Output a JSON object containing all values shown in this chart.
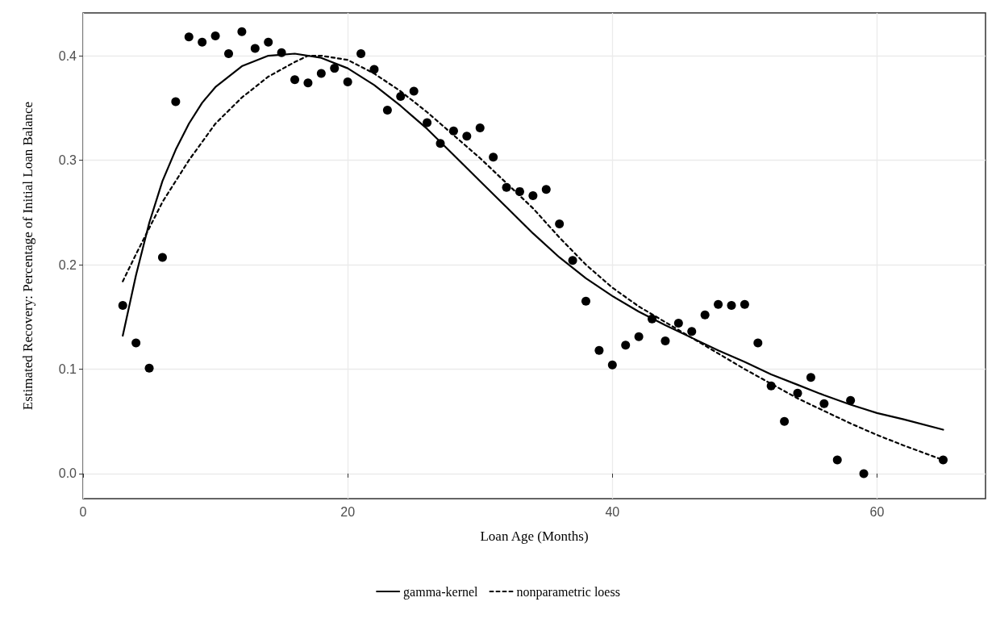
{
  "chart_data": {
    "type": "scatter",
    "xlabel": "Loan Age (Months)",
    "ylabel": "Estimated Recovery: Percentage of Initial Loan Balance",
    "xlim": [
      0,
      68.2
    ],
    "xticks": [
      0,
      20,
      40,
      60
    ],
    "ylim": [
      -0.024,
      0.441
    ],
    "yticks": [
      {
        "value": 0,
        "label": "0.0"
      },
      0.1,
      0.2,
      0.3,
      0.4
    ],
    "grid": true,
    "legend": "bottom",
    "series": [
      {
        "color": "#000000",
        "marker": "circle",
        "x": [
          3,
          4,
          5,
          6,
          7,
          8,
          9,
          10,
          11,
          12,
          13,
          14,
          15,
          16,
          17,
          18,
          19,
          20,
          21,
          22,
          23,
          24,
          25,
          26,
          27,
          28,
          29,
          30,
          31,
          32,
          33,
          34,
          35,
          36,
          37,
          38,
          39,
          40,
          41,
          42,
          43,
          44,
          45,
          46,
          47,
          48,
          49,
          50,
          51,
          52,
          53,
          54,
          55,
          56,
          57,
          58,
          59,
          65
        ],
        "values": [
          0.161,
          0.125,
          0.101,
          0.207,
          0.356,
          0.418,
          0.413,
          0.419,
          0.402,
          0.423,
          0.407,
          0.413,
          0.403,
          0.377,
          0.374,
          0.383,
          0.388,
          0.375,
          0.402,
          0.387,
          0.348,
          0.361,
          0.366,
          0.336,
          0.316,
          0.328,
          0.323,
          0.331,
          0.303,
          0.274,
          0.27,
          0.266,
          0.272,
          0.239,
          0.204,
          0.165,
          0.118,
          0.104,
          0.123,
          0.131,
          0.148,
          0.127,
          0.144,
          0.136,
          0.152,
          0.162,
          0.161,
          0.162,
          0.125,
          0.084,
          0.05,
          0.077,
          0.092,
          0.067,
          0.013,
          0.07,
          0.0,
          0.013
        ]
      },
      {
        "type": "line",
        "name": "gamma-kernel",
        "color": "#000000",
        "line_style": "solid",
        "marker": "none",
        "x": [
          3,
          4,
          5,
          6,
          7,
          8,
          9,
          10,
          12,
          14,
          16,
          18,
          20,
          22,
          24,
          26,
          28,
          30,
          32,
          34,
          36,
          38,
          40,
          42,
          44,
          46,
          48,
          50,
          52,
          54,
          56,
          58,
          60,
          62,
          65
        ],
        "values": [
          0.132,
          0.19,
          0.24,
          0.28,
          0.31,
          0.335,
          0.355,
          0.37,
          0.39,
          0.4,
          0.402,
          0.398,
          0.388,
          0.372,
          0.352,
          0.33,
          0.305,
          0.28,
          0.255,
          0.23,
          0.207,
          0.187,
          0.17,
          0.155,
          0.142,
          0.13,
          0.118,
          0.107,
          0.095,
          0.085,
          0.075,
          0.066,
          0.058,
          0.052,
          0.042
        ]
      },
      {
        "type": "line",
        "name": "nonparametric loess",
        "color": "#000000",
        "line_style": "dashed",
        "marker": "none",
        "x": [
          3,
          4,
          6,
          8,
          10,
          12,
          14,
          16,
          17,
          18,
          20,
          22,
          24,
          26,
          28,
          30,
          32,
          34,
          36,
          38,
          40,
          42,
          44,
          46,
          48,
          50,
          52,
          54,
          56,
          58,
          60,
          62,
          65
        ],
        "values": [
          0.184,
          0.21,
          0.26,
          0.3,
          0.335,
          0.36,
          0.38,
          0.394,
          0.4,
          0.4,
          0.396,
          0.383,
          0.366,
          0.346,
          0.324,
          0.302,
          0.278,
          0.254,
          0.226,
          0.2,
          0.178,
          0.16,
          0.145,
          0.13,
          0.115,
          0.1,
          0.086,
          0.072,
          0.06,
          0.048,
          0.037,
          0.027,
          0.013
        ]
      }
    ]
  }
}
